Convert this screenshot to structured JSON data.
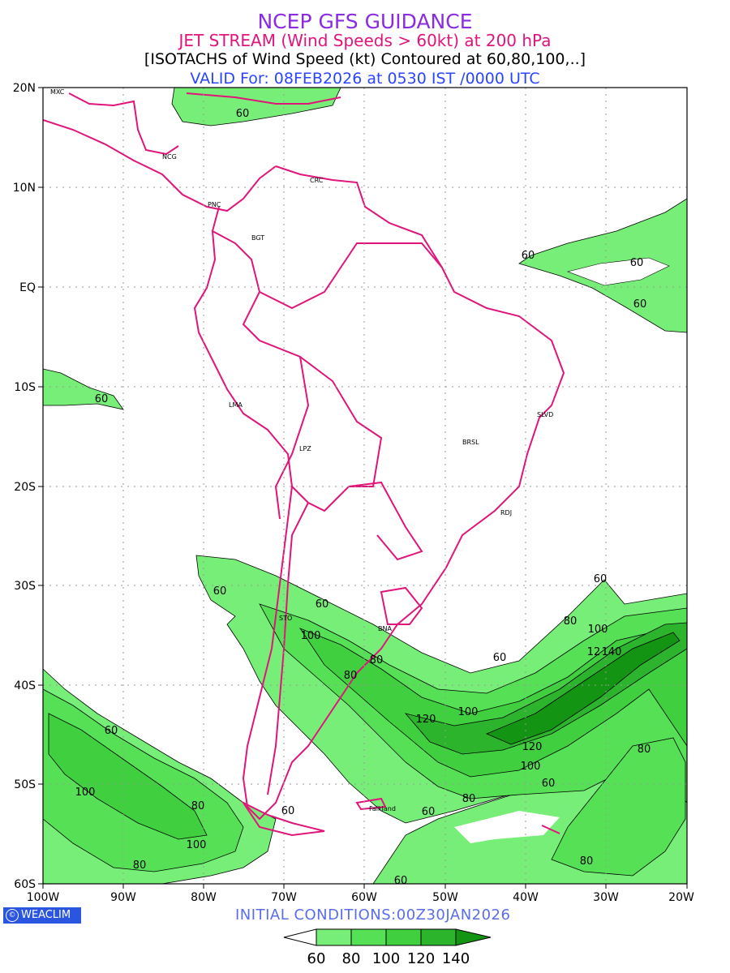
{
  "header": {
    "title": "NCEP GFS GUIDANCE",
    "subtitle": "JET STREAM (Wind Speeds > 60kt) at 200 hPa",
    "description": "[ISOTACHS of Wind Speed (kt) Contoured at 60,80,100,..]",
    "valid": "VALID For: 08FEB2026 at 0530 IST /0000 UTC"
  },
  "footer": {
    "initial_conditions": "INITIAL CONDITIONS:00Z30JAN2026",
    "logo_text": "WEACLIM"
  },
  "axes": {
    "lat_labels": [
      "20N",
      "10N",
      "EQ",
      "10S",
      "20S",
      "30S",
      "40S",
      "50S",
      "60S"
    ],
    "lon_labels": [
      "100W",
      "90W",
      "80W",
      "70W",
      "60W",
      "50W",
      "40W",
      "30W",
      "20W"
    ]
  },
  "cities": {
    "mxc": "MXC",
    "ncg": "NCG",
    "crc": "CRC",
    "pnc": "PNC",
    "bgt": "BGT",
    "lma": "LMA",
    "lpz": "LPZ",
    "brsl": "BRSL",
    "slvd": "SLVD",
    "rdj": "RDJ",
    "sto": "STO",
    "bna": "BNA",
    "falkland": "Falkland"
  },
  "contour_labels": {
    "c1": "60",
    "c2": "60",
    "c3": "60",
    "c4": "60",
    "c5": "60",
    "c6": "60",
    "c7": "60",
    "c8": "60",
    "c9": "80",
    "c10": "100",
    "c11": "12",
    "c12": "140",
    "c13": "60",
    "c14": "100",
    "c15": "80",
    "c16": "80",
    "c17": "120",
    "c18": "100",
    "c19": "120",
    "c20": "100",
    "c21": "60",
    "c22": "80",
    "c23": "60",
    "c24": "60",
    "c25": "80",
    "c26": "80",
    "c27": "60",
    "c28": "100",
    "c29": "80",
    "c30": "100",
    "c31": "80",
    "c32": "60"
  },
  "colorbar": {
    "labels": [
      "60",
      "80",
      "100",
      "120",
      "140"
    ],
    "colors": [
      "#77ee77",
      "#55e055",
      "#33c833",
      "#22b022",
      "#119911"
    ]
  },
  "colors": {
    "c60": "#77ee77",
    "c80": "#55e055",
    "c100": "#3fcf3f",
    "c120": "#2cb52c",
    "c140": "#139413",
    "coast": "#e0147a",
    "grid": "#999999"
  }
}
